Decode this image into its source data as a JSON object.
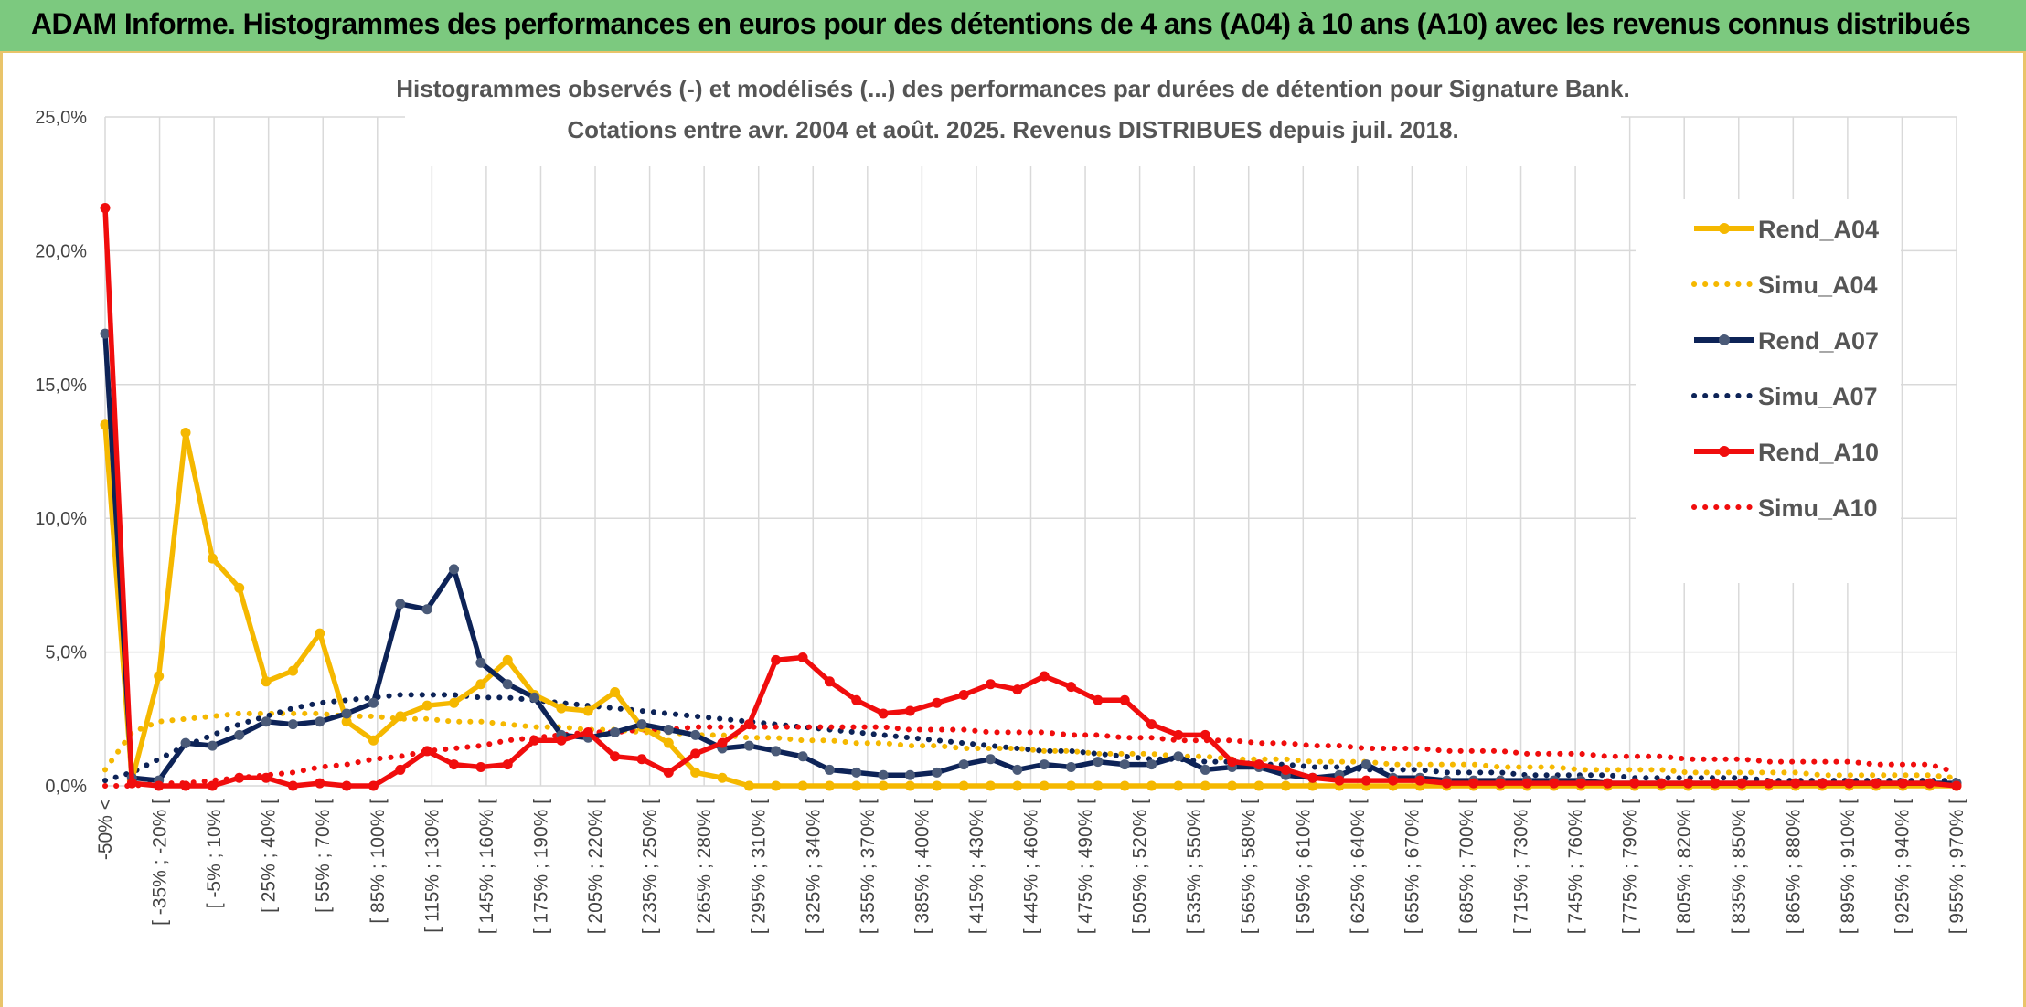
{
  "banner": {
    "title": "ADAM Informe. Histogrammes des performances en euros pour des détentions de 4 ans (A04) à 10 ans (A10) avec les revenus connus distribués"
  },
  "colors": {
    "banner_bg": "#7cc97f",
    "frame": "#e9c46a",
    "A04": "#f5b800",
    "A07": "#0d2357",
    "A10": "#f00d0d",
    "grid": "#d9d9d9"
  },
  "chart_data": {
    "type": "line",
    "title": "Histogrammes observés (-) et modélisés (...) des performances par durées de détention pour Signature Bank.",
    "subtitle": "Cotations entre avr. 2004 et août. 2025. Revenus DISTRIBUES depuis juil. 2018.",
    "xlabel": "",
    "ylabel": "",
    "ylim": [
      0,
      25
    ],
    "y_ticks": [
      "0,0%",
      "5,0%",
      "10,0%",
      "15,0%",
      "20,0%",
      "25,0%"
    ],
    "grid": true,
    "legend_position": "right",
    "x_tick_labels": [
      "-50% <",
      "[ -35% ; -20% [",
      "[ -5% ; 10% [",
      "[ 25% ; 40% [",
      "[ 55% ; 70% [",
      "[ 85% ; 100% [",
      "[ 115% ; 130% [",
      "[ 145% ; 160% [",
      "[ 175% ; 190% [",
      "[ 205% ; 220% [",
      "[ 235% ; 250% [",
      "[ 265% ; 280% [",
      "[ 295% ; 310% [",
      "[ 325% ; 340% [",
      "[ 355% ; 370% [",
      "[ 385% ; 400% [",
      "[ 415% ; 430% [",
      "[ 445% ; 460% [",
      "[ 475% ; 490% [",
      "[ 505% ; 520% [",
      "[ 535% ; 550% [",
      "[ 565% ; 580% [",
      "[ 595% ; 610% [",
      "[ 625% ; 640% [",
      "[ 655% ; 670% [",
      "[ 685% ; 700% [",
      "[ 715% ; 730% [",
      "[ 745% ; 760% [",
      "[ 775% ; 790% [",
      "[ 805% ; 820% [",
      "[ 835% ; 850% [",
      "[ 865% ; 880% [",
      "[ 895% ; 910% [",
      "[ 925% ; 940% [",
      "[ 955% ; 970% ["
    ],
    "series": [
      {
        "name": "Rend_A04",
        "style": "solid",
        "color": "#f5b800",
        "values": [
          13.5,
          0.2,
          4.1,
          13.2,
          8.5,
          7.4,
          3.9,
          4.3,
          5.7,
          2.4,
          1.7,
          2.6,
          3.0,
          3.1,
          3.8,
          4.7,
          3.4,
          2.9,
          2.8,
          3.5,
          2.2,
          1.6,
          0.5,
          0.3,
          0,
          0,
          0,
          0,
          0,
          0,
          0,
          0,
          0,
          0,
          0,
          0,
          0,
          0,
          0,
          0,
          0,
          0,
          0,
          0,
          0,
          0,
          0,
          0,
          0,
          0,
          0,
          0,
          0,
          0,
          0,
          0,
          0,
          0,
          0,
          0,
          0,
          0,
          0,
          0,
          0,
          0,
          0,
          0,
          0,
          0
        ]
      },
      {
        "name": "Simu_A04",
        "style": "dotted",
        "color": "#f5b800",
        "values": [
          0.6,
          2.0,
          2.4,
          2.5,
          2.6,
          2.7,
          2.7,
          2.7,
          2.7,
          2.6,
          2.6,
          2.5,
          2.5,
          2.4,
          2.4,
          2.3,
          2.2,
          2.2,
          2.1,
          2.1,
          2.0,
          2.0,
          1.9,
          1.9,
          1.8,
          1.8,
          1.7,
          1.7,
          1.6,
          1.6,
          1.5,
          1.5,
          1.4,
          1.4,
          1.4,
          1.3,
          1.3,
          1.2,
          1.2,
          1.2,
          1.1,
          1.1,
          1.0,
          1.0,
          1.0,
          0.9,
          0.9,
          0.9,
          0.8,
          0.8,
          0.8,
          0.8,
          0.7,
          0.7,
          0.7,
          0.6,
          0.6,
          0.6,
          0.6,
          0.5,
          0.5,
          0.5,
          0.5,
          0.5,
          0.4,
          0.4,
          0.4,
          0.4,
          0.4,
          0.3
        ]
      },
      {
        "name": "Rend_A07",
        "style": "solid",
        "color": "#0d2357",
        "values": [
          16.9,
          0.3,
          0.2,
          1.6,
          1.5,
          1.9,
          2.4,
          2.3,
          2.4,
          2.7,
          3.1,
          6.8,
          6.6,
          8.1,
          4.6,
          3.8,
          3.3,
          1.9,
          1.8,
          2.0,
          2.3,
          2.1,
          1.9,
          1.4,
          1.5,
          1.3,
          1.1,
          0.6,
          0.5,
          0.4,
          0.4,
          0.5,
          0.8,
          1.0,
          0.6,
          0.8,
          0.7,
          0.9,
          0.8,
          0.8,
          1.1,
          0.6,
          0.7,
          0.7,
          0.4,
          0.3,
          0.4,
          0.8,
          0.3,
          0.3,
          0.2,
          0.2,
          0.2,
          0.2,
          0.2,
          0.2,
          0.1,
          0.1,
          0.1,
          0.1,
          0.1,
          0.1,
          0.1,
          0.1,
          0.1,
          0.1,
          0.1,
          0.1,
          0.1,
          0.1
        ]
      },
      {
        "name": "Simu_A07",
        "style": "dotted",
        "color": "#0d2357",
        "values": [
          0.2,
          0.5,
          1.0,
          1.5,
          1.9,
          2.3,
          2.6,
          2.9,
          3.1,
          3.2,
          3.3,
          3.4,
          3.4,
          3.4,
          3.3,
          3.3,
          3.2,
          3.1,
          3.0,
          2.9,
          2.8,
          2.7,
          2.6,
          2.5,
          2.4,
          2.3,
          2.2,
          2.1,
          2.0,
          1.9,
          1.8,
          1.7,
          1.6,
          1.5,
          1.4,
          1.3,
          1.3,
          1.2,
          1.1,
          1.0,
          1.0,
          0.9,
          0.9,
          0.8,
          0.8,
          0.7,
          0.7,
          0.6,
          0.6,
          0.6,
          0.5,
          0.5,
          0.5,
          0.4,
          0.4,
          0.4,
          0.4,
          0.3,
          0.3,
          0.3,
          0.3,
          0.3,
          0.2,
          0.2,
          0.2,
          0.2,
          0.2,
          0.2,
          0.2,
          0.2
        ]
      },
      {
        "name": "Rend_A10",
        "style": "solid",
        "color": "#f00d0d",
        "values": [
          21.6,
          0.1,
          0.0,
          0.0,
          0.0,
          0.3,
          0.3,
          0.0,
          0.1,
          0.0,
          0.0,
          0.6,
          1.3,
          0.8,
          0.7,
          0.8,
          1.7,
          1.7,
          2.0,
          1.1,
          1.0,
          0.5,
          1.2,
          1.6,
          2.3,
          4.7,
          4.8,
          3.9,
          3.2,
          2.7,
          2.8,
          3.1,
          3.4,
          3.8,
          3.6,
          4.1,
          3.7,
          3.2,
          3.2,
          2.3,
          1.9,
          1.9,
          0.9,
          0.8,
          0.6,
          0.3,
          0.2,
          0.2,
          0.2,
          0.2,
          0.1,
          0.1,
          0.1,
          0.1,
          0.1,
          0.1,
          0.1,
          0.1,
          0.1,
          0.1,
          0.1,
          0.1,
          0.1,
          0.1,
          0.1,
          0.1,
          0.1,
          0.1,
          0.1,
          0.0
        ]
      },
      {
        "name": "Simu_A10",
        "style": "dotted",
        "color": "#f00d0d",
        "values": [
          0.0,
          0.0,
          0.1,
          0.1,
          0.2,
          0.3,
          0.4,
          0.5,
          0.7,
          0.8,
          1.0,
          1.1,
          1.3,
          1.4,
          1.5,
          1.7,
          1.8,
          1.9,
          2.0,
          2.0,
          2.1,
          2.1,
          2.2,
          2.2,
          2.2,
          2.2,
          2.2,
          2.2,
          2.2,
          2.2,
          2.1,
          2.1,
          2.1,
          2.0,
          2.0,
          2.0,
          1.9,
          1.9,
          1.8,
          1.8,
          1.7,
          1.7,
          1.7,
          1.6,
          1.6,
          1.5,
          1.5,
          1.4,
          1.4,
          1.4,
          1.3,
          1.3,
          1.3,
          1.2,
          1.2,
          1.2,
          1.1,
          1.1,
          1.1,
          1.0,
          1.0,
          1.0,
          0.9,
          0.9,
          0.9,
          0.9,
          0.8,
          0.8,
          0.8,
          0.5
        ]
      }
    ]
  }
}
